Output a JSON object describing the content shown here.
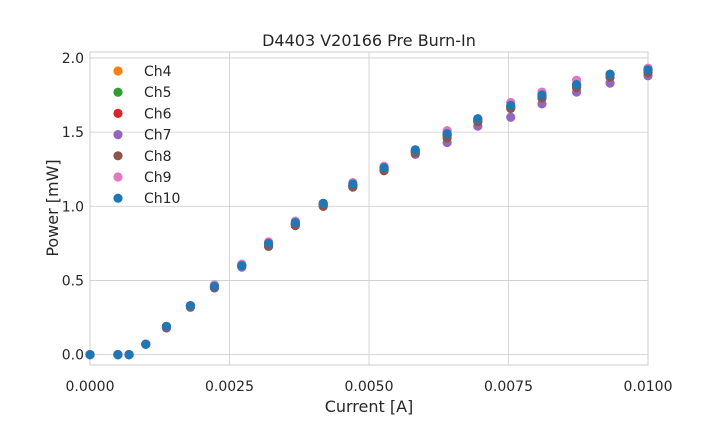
{
  "chart_data": {
    "type": "scatter",
    "title": "D4403 V20166 Pre Burn-In",
    "xlabel": "Current [A]",
    "ylabel": "Power [mW]",
    "xlim": [
      0.0,
      0.01
    ],
    "ylim": [
      -0.07,
      2.04
    ],
    "x_ticks": [
      "0.0000",
      "0.0025",
      "0.0050",
      "0.0075",
      "0.0100"
    ],
    "x_tick_values": [
      0.0,
      0.0025,
      0.005,
      0.0075,
      0.01
    ],
    "y_ticks": [
      "0.0",
      "0.5",
      "1.0",
      "1.5",
      "2.0"
    ],
    "y_tick_values": [
      0.0,
      0.5,
      1.0,
      1.5,
      2.0
    ],
    "grid": true,
    "legend_position": "top-left",
    "x": [
      0.0,
      0.0005,
      0.0007,
      0.001,
      0.00137,
      0.0018,
      0.00223,
      0.00272,
      0.0032,
      0.00368,
      0.00418,
      0.00471,
      0.00527,
      0.00583,
      0.0064,
      0.00695,
      0.00754,
      0.0081,
      0.00872,
      0.00932,
      0.01
    ],
    "series": [
      {
        "name": "Ch4",
        "color": "#ff7f0e",
        "values": [
          0.0,
          0.0,
          0.0,
          0.07,
          0.19,
          0.33,
          0.46,
          0.6,
          0.74,
          0.88,
          1.01,
          1.14,
          1.25,
          1.36,
          1.47,
          1.57,
          1.66,
          1.73,
          1.8,
          1.87,
          1.91
        ]
      },
      {
        "name": "Ch5",
        "color": "#2ca02c",
        "values": [
          0.0,
          0.0,
          0.0,
          0.07,
          0.19,
          0.33,
          0.46,
          0.6,
          0.74,
          0.88,
          1.01,
          1.14,
          1.25,
          1.37,
          1.48,
          1.58,
          1.67,
          1.74,
          1.81,
          1.88,
          1.92
        ]
      },
      {
        "name": "Ch6",
        "color": "#d62728",
        "values": [
          0.0,
          0.0,
          0.0,
          0.07,
          0.19,
          0.33,
          0.46,
          0.6,
          0.74,
          0.88,
          1.01,
          1.14,
          1.25,
          1.37,
          1.48,
          1.58,
          1.67,
          1.75,
          1.82,
          1.89,
          1.93
        ]
      },
      {
        "name": "Ch7",
        "color": "#9467bd",
        "values": [
          0.0,
          0.0,
          0.0,
          0.07,
          0.18,
          0.32,
          0.45,
          0.59,
          0.73,
          0.87,
          1.0,
          1.13,
          1.24,
          1.35,
          1.43,
          1.54,
          1.6,
          1.69,
          1.77,
          1.83,
          1.88
        ]
      },
      {
        "name": "Ch8",
        "color": "#8c564b",
        "values": [
          0.0,
          0.0,
          0.0,
          0.07,
          0.18,
          0.32,
          0.45,
          0.6,
          0.73,
          0.87,
          1.0,
          1.13,
          1.24,
          1.36,
          1.46,
          1.57,
          1.66,
          1.73,
          1.8,
          1.87,
          1.9
        ]
      },
      {
        "name": "Ch9",
        "color": "#e377c2",
        "values": [
          0.0,
          0.0,
          0.0,
          0.07,
          0.19,
          0.33,
          0.47,
          0.61,
          0.76,
          0.9,
          1.02,
          1.16,
          1.27,
          1.38,
          1.51,
          1.59,
          1.7,
          1.77,
          1.85,
          1.89,
          1.93
        ]
      },
      {
        "name": "Ch10",
        "color": "#1f77b4",
        "values": [
          0.0,
          0.0,
          0.0,
          0.07,
          0.19,
          0.33,
          0.46,
          0.6,
          0.75,
          0.89,
          1.02,
          1.15,
          1.26,
          1.38,
          1.49,
          1.59,
          1.68,
          1.75,
          1.82,
          1.89,
          1.92
        ]
      }
    ]
  }
}
